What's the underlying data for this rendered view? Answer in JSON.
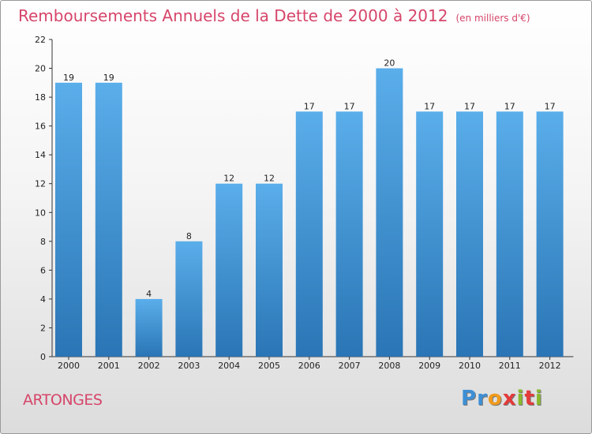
{
  "chart_data": {
    "type": "bar",
    "title": "Remboursements Annuels de la Dette de 2000 à 2012",
    "unit": "(en milliers d'€)",
    "categories": [
      "2000",
      "2001",
      "2002",
      "2003",
      "2004",
      "2005",
      "2006",
      "2007",
      "2008",
      "2009",
      "2010",
      "2011",
      "2012"
    ],
    "values": [
      19,
      19,
      4,
      8,
      12,
      12,
      17,
      17,
      20,
      17,
      17,
      17,
      17
    ],
    "ylim": [
      0,
      22
    ],
    "yticks": [
      0,
      2,
      4,
      6,
      8,
      10,
      12,
      14,
      16,
      18,
      20,
      22
    ],
    "xlabel": "",
    "ylabel": "",
    "grid": false,
    "bar_color_top": "#5aaeea",
    "bar_color_bottom": "#2a75b5"
  },
  "commune": "ARTONGES",
  "brand": {
    "letters": [
      "P",
      "r",
      "o",
      "x",
      "i",
      "t",
      "i"
    ],
    "colors": [
      "#3d8fd6",
      "#3d8fd6",
      "#f09a1c",
      "#e53a3a",
      "#8ab92d",
      "#e53a3a",
      "#8ab92d"
    ]
  }
}
